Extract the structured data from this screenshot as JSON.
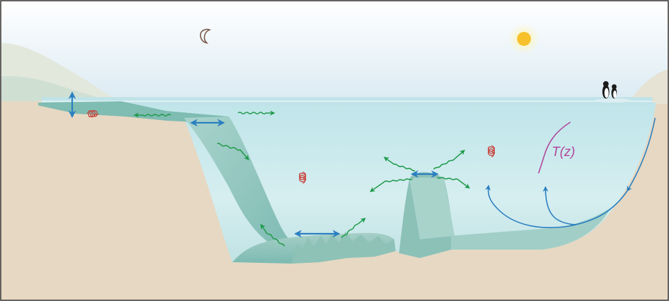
{
  "annotation": {
    "profile_label": "T(z)"
  },
  "colors": {
    "sky_top": "#ffffff",
    "sky_bottom": "#dcebf3",
    "land": "#e6d8c3",
    "water_surface": "#bfe3e8",
    "water_deep": "#93cccd",
    "rock": "#9bc3b8",
    "arrow_blue": "#2b7fc0",
    "arrow_green": "#1f9a4a",
    "eddy_red": "#c8443c",
    "profile_magenta": "#b0479c",
    "sun": "#f6c12b",
    "moon": "#7a5a4a",
    "frame": "#333333"
  },
  "icons": [
    "moon-icon",
    "sun-icon",
    "penguin-icon"
  ]
}
